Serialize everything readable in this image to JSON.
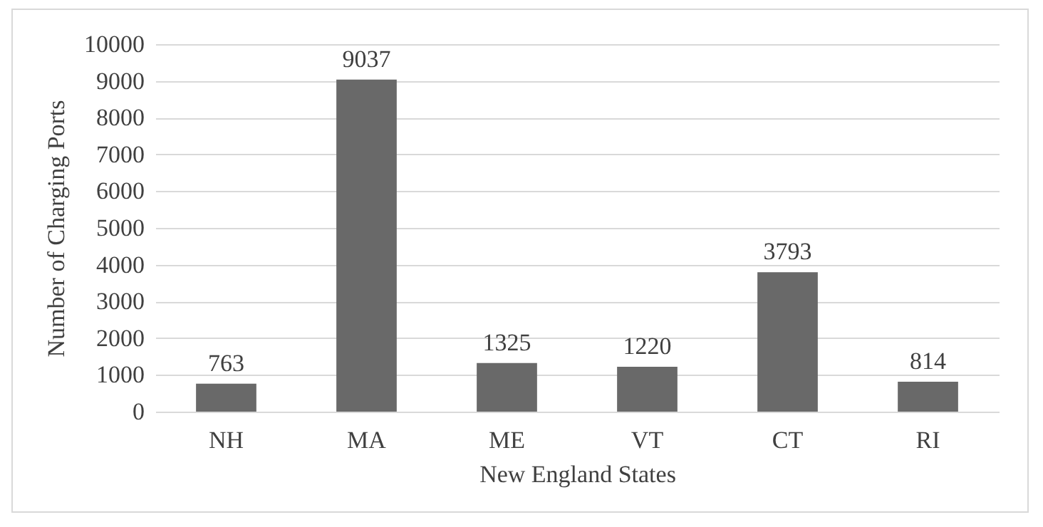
{
  "chart_data": {
    "type": "bar",
    "xlabel": "New England States",
    "ylabel": "Number of Charging Ports",
    "categories": [
      "NH",
      "MA",
      "ME",
      "VT",
      "CT",
      "RI"
    ],
    "values": [
      763,
      9037,
      1325,
      1220,
      3793,
      814
    ],
    "color": "#696969",
    "ylim": [
      0,
      10000
    ],
    "yticks": [
      0,
      1000,
      2000,
      3000,
      4000,
      5000,
      6000,
      7000,
      8000,
      9000,
      10000
    ],
    "grid": "y",
    "data_labels": true
  }
}
